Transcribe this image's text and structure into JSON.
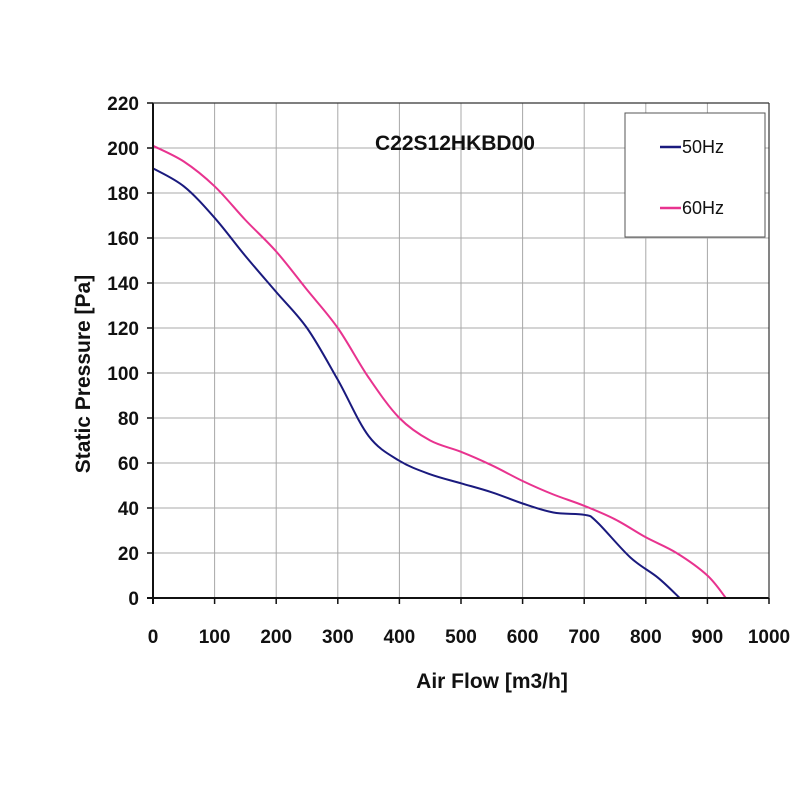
{
  "chart_data": {
    "type": "line",
    "title": "C22S12HKBD00",
    "xlabel": "Air Flow [m3/h]",
    "ylabel": "Static Pressure [Pa]",
    "xlim": [
      0,
      1000
    ],
    "ylim": [
      0,
      220
    ],
    "xticks": [
      0,
      100,
      200,
      300,
      400,
      500,
      600,
      700,
      800,
      900,
      1000
    ],
    "yticks": [
      0,
      20,
      40,
      60,
      80,
      100,
      120,
      140,
      160,
      180,
      200,
      220
    ],
    "grid": true,
    "legend_position": "top-right",
    "series": [
      {
        "name": "50Hz",
        "color": "#1a1a7e",
        "points": [
          [
            0,
            191
          ],
          [
            50,
            183
          ],
          [
            100,
            169
          ],
          [
            150,
            152
          ],
          [
            200,
            136
          ],
          [
            250,
            120
          ],
          [
            300,
            97
          ],
          [
            350,
            72
          ],
          [
            400,
            61
          ],
          [
            450,
            55
          ],
          [
            500,
            51
          ],
          [
            550,
            47
          ],
          [
            600,
            42
          ],
          [
            650,
            38
          ],
          [
            700,
            37
          ],
          [
            720,
            34
          ],
          [
            775,
            18
          ],
          [
            820,
            9
          ],
          [
            855,
            0
          ]
        ]
      },
      {
        "name": "60Hz",
        "color": "#e8338f",
        "points": [
          [
            0,
            201
          ],
          [
            50,
            194
          ],
          [
            100,
            183
          ],
          [
            150,
            168
          ],
          [
            200,
            154
          ],
          [
            250,
            137
          ],
          [
            300,
            120
          ],
          [
            350,
            98
          ],
          [
            400,
            80
          ],
          [
            450,
            70
          ],
          [
            500,
            65
          ],
          [
            550,
            59
          ],
          [
            600,
            52
          ],
          [
            650,
            46
          ],
          [
            700,
            41
          ],
          [
            750,
            35
          ],
          [
            800,
            27
          ],
          [
            850,
            20
          ],
          [
            900,
            10
          ],
          [
            930,
            0
          ]
        ]
      }
    ]
  }
}
